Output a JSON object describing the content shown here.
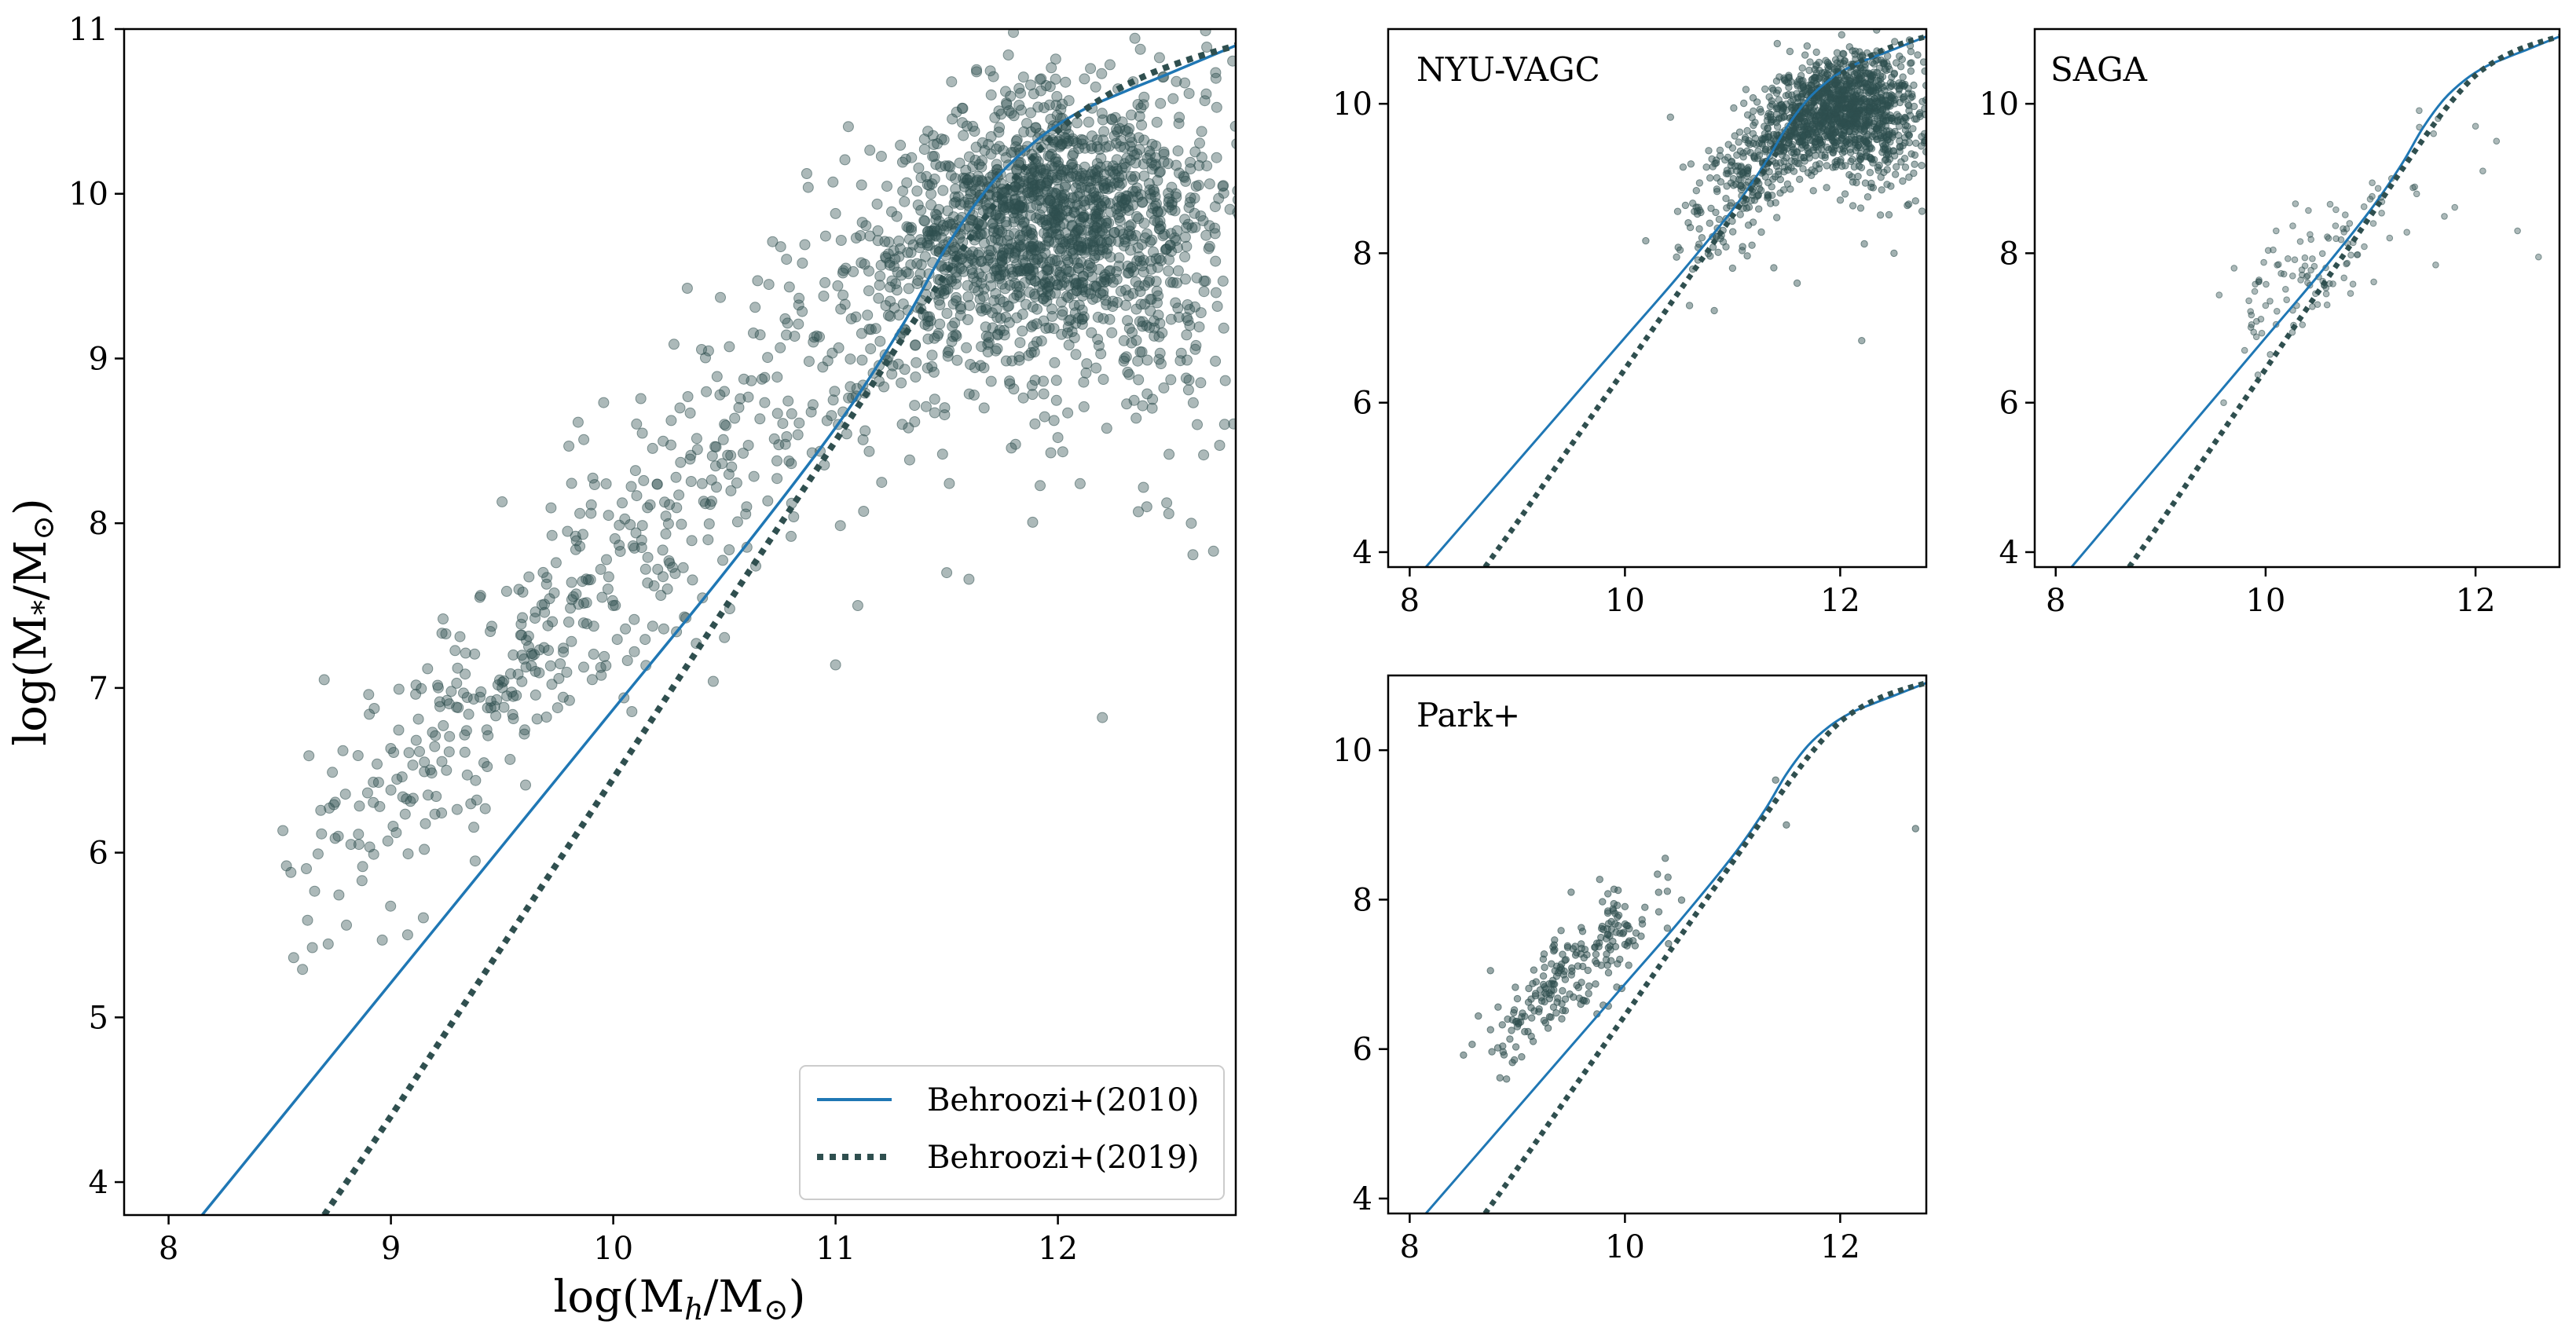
{
  "colors": {
    "line_2010": "#1f77b4",
    "line_2019": "#2f4f4f",
    "points": "#2f4f4f",
    "axes": "#000000",
    "background": "#ffffff"
  },
  "chart_data": [
    {
      "id": "main",
      "type": "scatter",
      "title": "",
      "xlabel": "log(M_h/M_⊙)",
      "ylabel": "log(M_*/M_⊙)",
      "xlim": [
        7.8,
        12.8
      ],
      "ylim": [
        3.8,
        11
      ],
      "xticks": [
        "8",
        "9",
        "10",
        "11",
        "12"
      ],
      "yticks": [
        "4",
        "5",
        "6",
        "7",
        "8",
        "9",
        "10",
        "11"
      ],
      "grid": false,
      "legend": {
        "position": "lower-right",
        "entries": [
          {
            "label": "Behroozi+(2010)",
            "style": "solid",
            "color": "#1f77b4"
          },
          {
            "label": "Behroozi+(2019)",
            "style": "dotted",
            "color": "#2f4f4f"
          }
        ]
      },
      "series": [
        {
          "name": "Behroozi+(2010)",
          "kind": "line",
          "style": "solid",
          "x": [
            8.0,
            8.5,
            9.0,
            9.5,
            10.0,
            10.5,
            11.0,
            11.3,
            11.5,
            11.7,
            11.9,
            12.1,
            12.3,
            12.5,
            12.8
          ],
          "y": [
            3.55,
            4.38,
            5.21,
            6.04,
            6.87,
            7.7,
            8.58,
            9.2,
            9.68,
            10.06,
            10.32,
            10.5,
            10.62,
            10.73,
            10.9
          ]
        },
        {
          "name": "Behroozi+(2019)",
          "kind": "line",
          "style": "dotted",
          "x": [
            8.7,
            9.0,
            9.5,
            10.0,
            10.5,
            11.0,
            11.3,
            11.6,
            11.8,
            12.0,
            12.2,
            12.4,
            12.6,
            12.8
          ],
          "y": [
            3.8,
            4.4,
            5.43,
            6.45,
            7.48,
            8.5,
            9.12,
            9.72,
            10.08,
            10.38,
            10.58,
            10.72,
            10.82,
            10.9
          ]
        }
      ],
      "scatter_summary": "Approximately 2,000 semi-transparent points rising from (8.5, 5.9) to a dense cloud around (11.5–12.8, 9–10.5); see generated points.",
      "scatter_points": [
        [
          8.53,
          5.92
        ],
        [
          8.55,
          5.88
        ],
        [
          8.7,
          7.05
        ],
        [
          8.8,
          5.56
        ],
        [
          8.82,
          6.05
        ],
        [
          8.87,
          5.83
        ],
        [
          8.9,
          6.96
        ],
        [
          8.95,
          6.28
        ],
        [
          9.0,
          6.38
        ],
        [
          9.05,
          6.46
        ],
        [
          9.1,
          6.33
        ],
        [
          9.15,
          6.02
        ],
        [
          9.2,
          6.71
        ],
        [
          9.25,
          6.5
        ],
        [
          9.3,
          7.12
        ],
        [
          9.35,
          6.84
        ],
        [
          9.4,
          7.55
        ],
        [
          9.45,
          6.92
        ],
        [
          9.5,
          8.13
        ],
        [
          9.55,
          7.2
        ],
        [
          9.6,
          6.72
        ],
        [
          9.65,
          7.1
        ],
        [
          9.7,
          7.63
        ],
        [
          9.75,
          6.88
        ],
        [
          9.8,
          7.4
        ],
        [
          9.85,
          7.86
        ],
        [
          9.9,
          8.06
        ],
        [
          9.95,
          7.55
        ],
        [
          10.0,
          7.5
        ],
        [
          10.1,
          8.32
        ],
        [
          10.2,
          7.72
        ],
        [
          10.3,
          8.7
        ],
        [
          10.4,
          8.24
        ],
        [
          10.45,
          7.04
        ],
        [
          10.5,
          8.6
        ],
        [
          10.5,
          8.8
        ],
        [
          10.6,
          8.1
        ],
        [
          10.7,
          9.45
        ],
        [
          10.8,
          7.92
        ],
        [
          10.9,
          9.1
        ],
        [
          11.0,
          7.14
        ],
        [
          11.0,
          9.88
        ],
        [
          11.1,
          7.5
        ],
        [
          11.2,
          9.5
        ],
        [
          11.3,
          8.6
        ],
        [
          11.4,
          10.27
        ],
        [
          11.5,
          7.7
        ],
        [
          11.6,
          7.66
        ],
        [
          11.7,
          10.6
        ],
        [
          11.8,
          10.98
        ],
        [
          11.9,
          10.4
        ],
        [
          12.0,
          8.52
        ],
        [
          12.1,
          8.24
        ],
        [
          12.2,
          6.82
        ],
        [
          12.3,
          9.0
        ],
        [
          12.4,
          8.1
        ],
        [
          12.5,
          9.6
        ],
        [
          12.6,
          8.0
        ],
        [
          12.7,
          7.83
        ],
        [
          12.75,
          8.6
        ]
      ]
    },
    {
      "id": "nyu",
      "type": "scatter",
      "title": "NYU-VAGC",
      "xlim": [
        7.8,
        12.8
      ],
      "ylim": [
        3.8,
        11
      ],
      "xticks": [
        "8",
        "10",
        "12"
      ],
      "yticks": [
        "4",
        "6",
        "8",
        "10"
      ],
      "grid": false,
      "scatter_summary": "Dense cloud of ~1,500 small points centred near (11.9, 9.8), extending from (10.5, 7.2) to the right edge.",
      "scatter_points": [
        [
          10.6,
          7.3
        ],
        [
          10.8,
          8.6
        ],
        [
          11.0,
          7.8
        ],
        [
          11.1,
          8.7
        ],
        [
          11.2,
          9.3
        ],
        [
          11.3,
          9.6
        ],
        [
          11.6,
          7.6
        ],
        [
          12.2,
          6.83
        ],
        [
          12.5,
          8.0
        ],
        [
          12.7,
          8.7
        ]
      ]
    },
    {
      "id": "saga",
      "type": "scatter",
      "title": "SAGA",
      "xlim": [
        7.8,
        12.8
      ],
      "ylim": [
        3.8,
        11
      ],
      "xticks": [
        "8",
        "10",
        "12"
      ],
      "yticks": [
        "4",
        "6",
        "8",
        "10"
      ],
      "grid": false,
      "scatter_summary": "About 120 light points between (9.5, 6.0) and (12.7, 9.8).",
      "scatter_points": [
        [
          9.6,
          6.0
        ],
        [
          9.7,
          7.8
        ],
        [
          9.8,
          6.7
        ],
        [
          10.0,
          7.3
        ],
        [
          10.1,
          8.3
        ],
        [
          10.4,
          7.7
        ],
        [
          10.6,
          8.2
        ],
        [
          10.8,
          8.4
        ],
        [
          11.2,
          9.0
        ],
        [
          11.6,
          9.6
        ],
        [
          12.0,
          9.7
        ],
        [
          12.2,
          9.5
        ],
        [
          12.4,
          8.3
        ],
        [
          12.6,
          7.95
        ]
      ]
    },
    {
      "id": "park",
      "type": "scatter",
      "title": "Park+",
      "xlim": [
        7.8,
        12.8
      ],
      "ylim": [
        3.8,
        11
      ],
      "xticks": [
        "8",
        "10",
        "12"
      ],
      "yticks": [
        "4",
        "6",
        "8",
        "10"
      ],
      "grid": false,
      "scatter_summary": "About 250 points between (8.5, 5.9) and (10.5, 8.3) plus a few near (11.4–12.7, 9–9.6).",
      "scatter_points": [
        [
          8.5,
          5.92
        ],
        [
          8.75,
          7.05
        ],
        [
          8.9,
          5.6
        ],
        [
          9.0,
          6.3
        ],
        [
          9.2,
          6.5
        ],
        [
          9.5,
          8.1
        ],
        [
          9.8,
          7.6
        ],
        [
          10.0,
          7.4
        ],
        [
          10.4,
          8.3
        ],
        [
          11.4,
          9.6
        ],
        [
          11.5,
          9.0
        ],
        [
          12.7,
          8.95
        ]
      ]
    }
  ]
}
